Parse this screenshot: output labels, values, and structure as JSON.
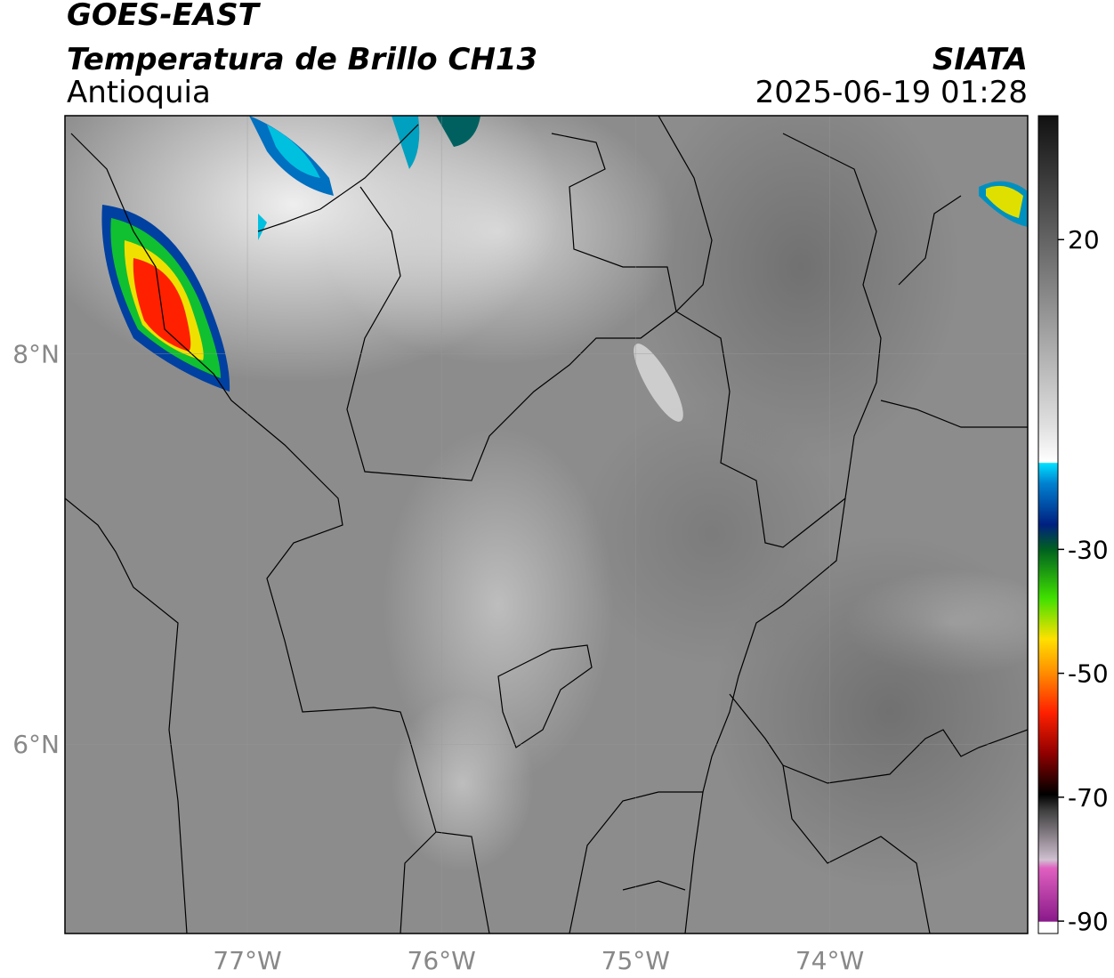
{
  "header": {
    "title": "GOES-EAST",
    "subtitle": "Temperatura de Brillo CH13",
    "region": "Antioquia",
    "source": "SIATA",
    "datetime": "2025-06-19 01:28"
  },
  "map": {
    "xlim": [
      -77.94,
      -72.98
    ],
    "ylim": [
      5.03,
      9.22
    ],
    "xticks": [
      {
        "value": -77,
        "label": "77°W"
      },
      {
        "value": -76,
        "label": "76°W"
      },
      {
        "value": -75,
        "label": "75°W"
      },
      {
        "value": -74,
        "label": "74°W"
      }
    ],
    "yticks": [
      {
        "value": 8,
        "label": "8°N"
      },
      {
        "value": 6,
        "label": "6°N"
      }
    ],
    "grid": true
  },
  "colorbar": {
    "clim": [
      -92,
      40
    ],
    "ticks": [
      20,
      -30,
      -50,
      -70,
      -90
    ]
  }
}
